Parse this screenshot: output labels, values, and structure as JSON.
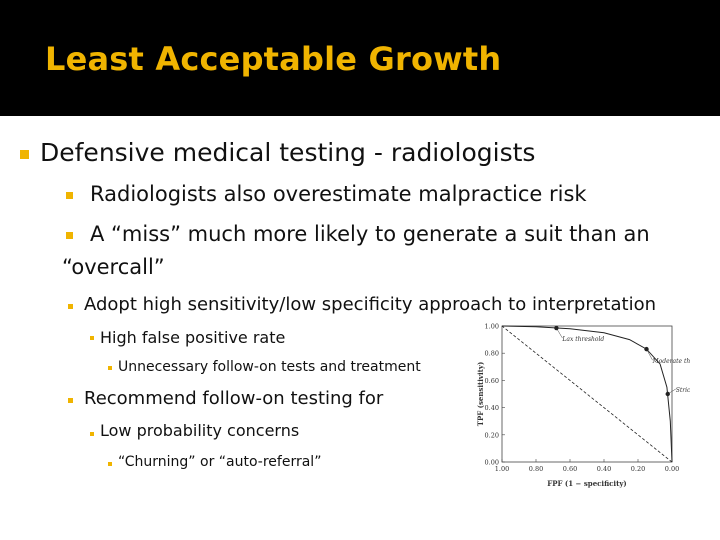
{
  "slide": {
    "title": "Least Acceptable Growth",
    "bullets": [
      "Defensive medical testing - radiologists",
      "Radiologists also overestimate malpractice risk",
      "A “miss” much more likely to generate a suit than an",
      "“overcall”",
      "Adopt high sensitivity/low specificity approach to interpretation",
      "High false positive rate",
      "Unnecessary follow-on tests and treatment",
      "Recommend follow-on testing for",
      "Low probability concerns",
      "“Churning” or “auto-referral”"
    ],
    "colors": {
      "title": "#f0b400",
      "bullet": "#f0b400",
      "background": "#000000",
      "body": "#ffffff"
    }
  },
  "chart_data": {
    "type": "line",
    "xlabel": "FPF (1 − specificity)",
    "ylabel": "TPF (sensitivity)",
    "xlim": [
      1.0,
      0.0
    ],
    "ylim": [
      0.0,
      1.0
    ],
    "x_ticks": [
      "1.00",
      "0.80",
      "0.60",
      "0.40",
      "0.20",
      "0.00"
    ],
    "y_ticks": [
      "0.00",
      "0.20",
      "0.40",
      "0.60",
      "0.80",
      "1.00"
    ],
    "series": [
      {
        "values": [
          [
            0.0,
            0.0
          ],
          [
            0.01,
            0.3
          ],
          [
            0.03,
            0.55
          ],
          [
            0.07,
            0.72
          ],
          [
            0.15,
            0.83
          ],
          [
            0.25,
            0.9
          ],
          [
            0.4,
            0.95
          ],
          [
            0.6,
            0.98
          ],
          [
            0.8,
            0.995
          ],
          [
            1.0,
            1.0
          ]
        ]
      },
      {
        "values": [
          [
            0.0,
            0.0
          ],
          [
            1.0,
            1.0
          ]
        ]
      }
    ],
    "annotations": [
      {
        "label": "Lax threshold",
        "x": 0.68,
        "y": 0.985
      },
      {
        "label": "Moderate threshold",
        "x": 0.15,
        "y": 0.83
      },
      {
        "label": "Strict threshold",
        "x": 0.025,
        "y": 0.5
      }
    ],
    "grid": false
  }
}
